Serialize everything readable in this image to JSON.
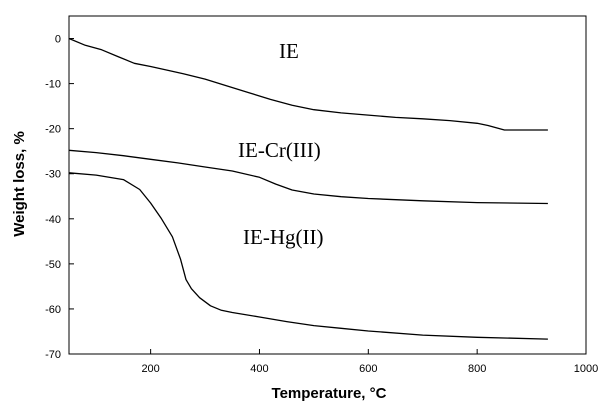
{
  "chart_data": {
    "type": "line",
    "title": "",
    "xlabel": "Temperature, °C",
    "ylabel": "Weight loss, %",
    "xlim": [
      50,
      1000
    ],
    "ylim": [
      -70,
      5
    ],
    "xticks": [
      200,
      400,
      600,
      800,
      1000
    ],
    "yticks": [
      0,
      -10,
      -20,
      -30,
      -40,
      -50,
      -60,
      -70
    ],
    "grid": false,
    "legend": "none",
    "line_color": "#000000",
    "series": [
      {
        "name": "IE",
        "x": [
          50,
          80,
          110,
          140,
          170,
          200,
          230,
          260,
          300,
          340,
          380,
          420,
          460,
          500,
          550,
          600,
          650,
          700,
          750,
          800,
          820,
          850,
          880,
          930
        ],
        "y": [
          0,
          -1.5,
          -2.5,
          -4,
          -5.5,
          -6.2,
          -7,
          -7.8,
          -9,
          -10.5,
          -12,
          -13.5,
          -14.8,
          -15.8,
          -16.5,
          -17,
          -17.5,
          -17.8,
          -18.2,
          -18.8,
          -19.3,
          -20.3,
          -20.3,
          -20.3
        ]
      },
      {
        "name": "IE-Cr(III)",
        "x": [
          50,
          100,
          150,
          200,
          250,
          300,
          350,
          400,
          430,
          460,
          500,
          550,
          600,
          700,
          800,
          930
        ],
        "y": [
          -24.8,
          -25.3,
          -26,
          -26.8,
          -27.6,
          -28.5,
          -29.4,
          -30.8,
          -32.3,
          -33.6,
          -34.5,
          -35.1,
          -35.5,
          -36,
          -36.4,
          -36.6
        ]
      },
      {
        "name": "IE-Hg(II)",
        "x": [
          50,
          100,
          150,
          180,
          200,
          220,
          240,
          255,
          265,
          275,
          290,
          310,
          330,
          350,
          400,
          450,
          500,
          550,
          600,
          700,
          800,
          930
        ],
        "y": [
          -29.8,
          -30.3,
          -31.3,
          -33.5,
          -36.5,
          -40,
          -44,
          -49,
          -53.5,
          -55.5,
          -57.5,
          -59.3,
          -60.3,
          -60.8,
          -61.8,
          -62.8,
          -63.7,
          -64.3,
          -64.9,
          -65.8,
          -66.3,
          -66.7
        ]
      }
    ]
  }
}
